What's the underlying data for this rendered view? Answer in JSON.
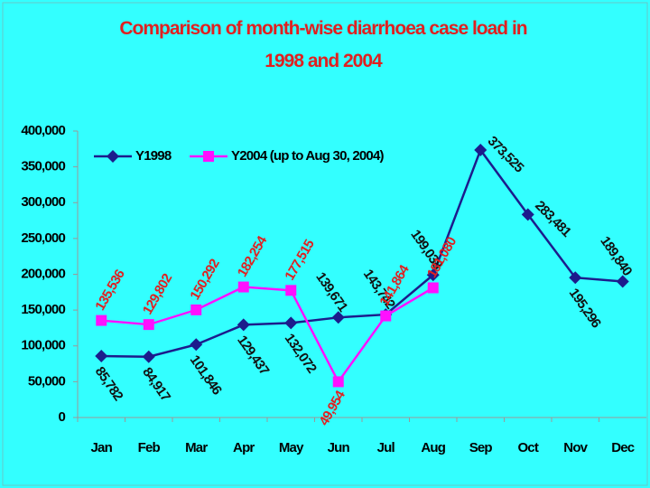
{
  "chart_data": {
    "type": "line",
    "title": "Comparison of month-wise diarrhoea case load in 1998 and 2004",
    "categories": [
      "Jan",
      "Feb",
      "Mar",
      "Apr",
      "May",
      "Jun",
      "Jul",
      "Aug",
      "Sep",
      "Oct",
      "Nov",
      "Dec"
    ],
    "series": [
      {
        "name": "Y1998",
        "color": "#1c1c8c",
        "values": [
          85782,
          84917,
          101846,
          129437,
          132072,
          139671,
          143742,
          199038,
          373525,
          283481,
          195296,
          189840
        ],
        "value_labels": [
          "85,782",
          "84,917",
          "101,846",
          "129,437",
          "132,072",
          "139,671",
          "143,742",
          "199,038",
          "373,525",
          "283,481",
          "195,296",
          "189,840"
        ]
      },
      {
        "name": "Y2004 (up to Aug 30, 2004)",
        "color": "#ff10ff",
        "values": [
          135536,
          129802,
          150292,
          182254,
          177515,
          49954,
          141864,
          181080,
          null,
          null,
          null,
          null
        ],
        "value_labels": [
          "135,536",
          "129,802",
          "150,292",
          "182,254",
          "177,515",
          "49,954",
          "141,864",
          "181,080",
          null,
          null,
          null,
          null
        ]
      }
    ],
    "ylim": [
      0,
      400000
    ],
    "yticks": [
      0,
      {
        "value": 50000,
        "label": "50,000"
      },
      {
        "value": 100000,
        "label": "100,000"
      },
      {
        "value": 150000,
        "label": "150,000"
      },
      {
        "value": 200000,
        "label": "200,000"
      },
      {
        "value": 250000,
        "label": "250,000"
      },
      {
        "value": 300000,
        "label": "300,000"
      },
      {
        "value": 350000,
        "label": "350,000"
      },
      {
        "value": 400000,
        "label": "400,000"
      }
    ],
    "legend": "top-left"
  }
}
